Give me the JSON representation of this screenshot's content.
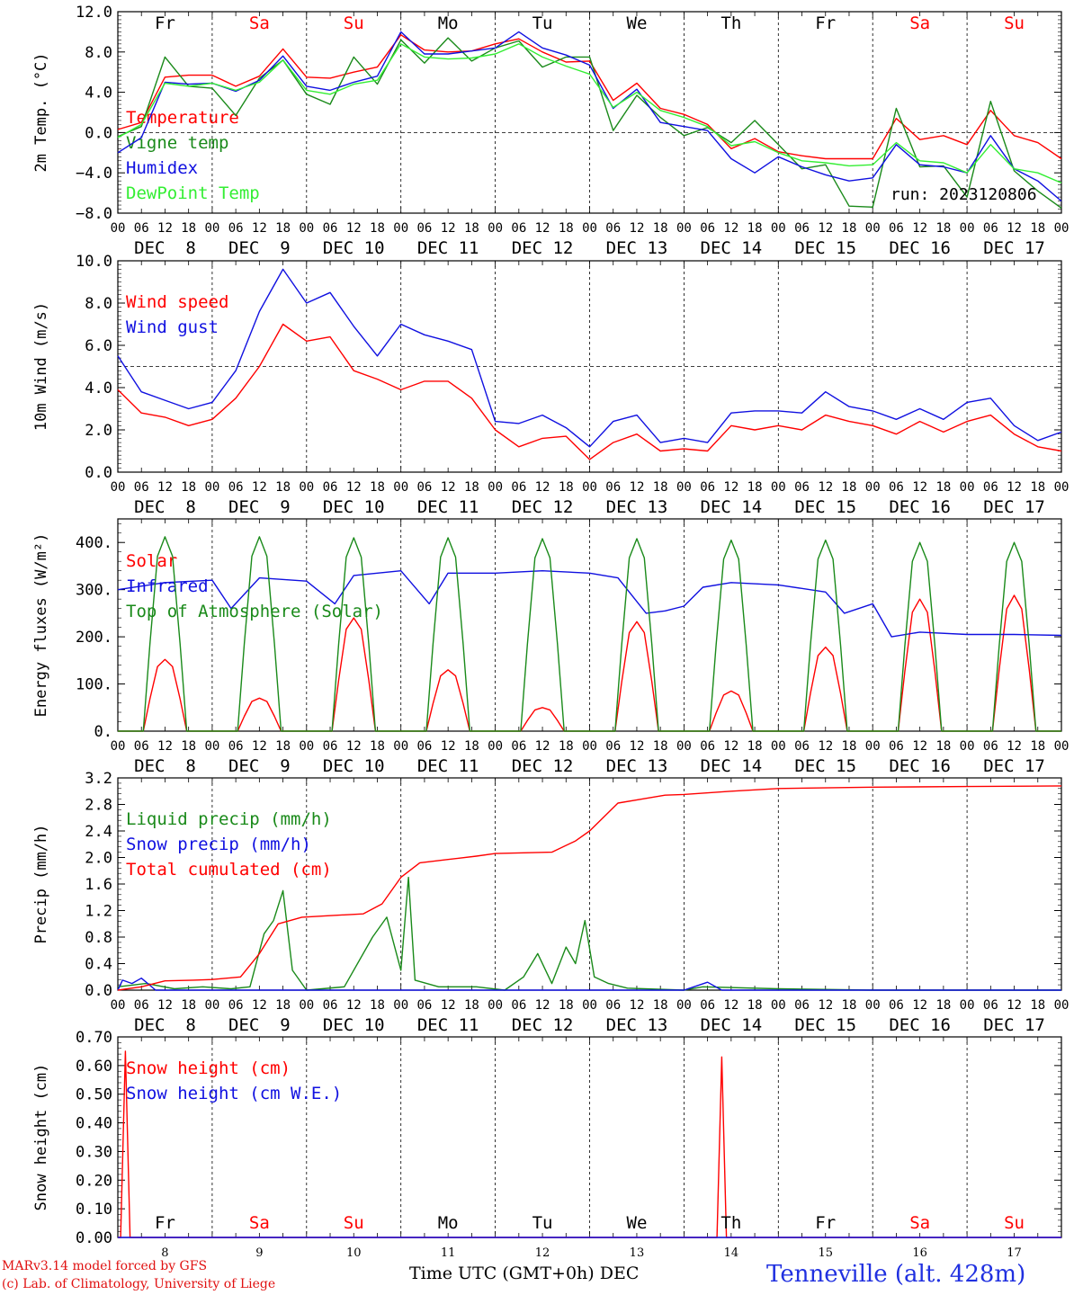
{
  "colors": {
    "red": "#ff0000",
    "green": "#1a8a1a",
    "blue": "#1010e0",
    "lightgreen": "#33ee33",
    "black": "#000000",
    "weekend": "#ff0000"
  },
  "days": {
    "weekday_labels": [
      "Fr",
      "Sa",
      "Su",
      "Mo",
      "Tu",
      "We",
      "Th",
      "Fr",
      "Sa",
      "Su"
    ],
    "weekend_flags": [
      false,
      true,
      true,
      false,
      false,
      false,
      false,
      false,
      true,
      true
    ],
    "date_labels": [
      "DEC  8",
      "DEC  9",
      "DEC 10",
      "DEC 11",
      "DEC 12",
      "DEC 13",
      "DEC 14",
      "DEC 15",
      "DEC 16",
      "DEC 17"
    ],
    "bottom_numbers": [
      "8",
      "9",
      "10",
      "11",
      "12",
      "13",
      "14",
      "15",
      "16",
      "17"
    ],
    "hour_ticks": [
      "00",
      "06",
      "12",
      "18"
    ],
    "final_hour": "00"
  },
  "run_label": "run: 2023120806",
  "footer": {
    "credit_line1": "MARv3.14 model forced by GFS",
    "credit_line2": "(c) Lab. of Climatology, University of Liege",
    "x_title": "Time UTC (GMT+0h) DEC",
    "station": "Tenneville (alt. 428m)"
  },
  "chart_data": [
    {
      "type": "line",
      "ylabel": "2m Temp. (°C)",
      "ylim": [
        -8,
        12
      ],
      "yticks": [
        "12.0",
        "8.0",
        "4.0",
        "0.0",
        "−4.0",
        "−8.0"
      ],
      "ytick_values": [
        12,
        8,
        4,
        0,
        -4,
        -8
      ],
      "minor_step": 0.4,
      "reference_line": 0,
      "x_unit": "days since DEC 8 00 UTC",
      "x_range": [
        0,
        10
      ],
      "series": [
        {
          "name": "Temperature",
          "color": "red",
          "x": [
            0,
            0.25,
            0.5,
            0.75,
            1,
            1.25,
            1.5,
            1.75,
            2,
            2.25,
            2.5,
            2.75,
            3,
            3.25,
            3.5,
            3.75,
            4,
            4.25,
            4.5,
            4.75,
            5,
            5.25,
            5.5,
            5.75,
            6,
            6.25,
            6.5,
            6.75,
            7,
            7.25,
            7.5,
            7.75,
            8,
            8.25,
            8.5,
            8.75,
            9,
            9.25,
            9.5,
            9.75,
            10
          ],
          "y": [
            0.3,
            1.0,
            5.5,
            5.7,
            5.7,
            4.6,
            5.6,
            8.3,
            5.5,
            5.4,
            6.0,
            6.5,
            9.7,
            8.2,
            8.0,
            8.1,
            8.8,
            9.3,
            8.0,
            7.0,
            7.1,
            3.2,
            4.9,
            2.4,
            1.8,
            0.8,
            -1.6,
            -0.6,
            -1.9,
            -2.3,
            -2.6,
            -2.6,
            -2.6,
            1.4,
            -0.7,
            -0.3,
            -1.2,
            2.2,
            -0.3,
            -1.0,
            -2.6
          ]
        },
        {
          "name": "Vigne temp",
          "color": "green",
          "x": [
            0,
            0.25,
            0.5,
            0.75,
            1,
            1.25,
            1.5,
            1.75,
            2,
            2.25,
            2.5,
            2.75,
            3,
            3.25,
            3.5,
            3.75,
            4,
            4.25,
            4.5,
            4.75,
            5,
            5.25,
            5.5,
            5.75,
            6,
            6.25,
            6.5,
            6.75,
            7,
            7.25,
            7.5,
            7.75,
            8,
            8.25,
            8.5,
            8.75,
            9,
            9.25,
            9.5,
            9.75,
            10
          ],
          "y": [
            -0.4,
            0.6,
            7.5,
            4.6,
            4.4,
            1.7,
            5.4,
            7.2,
            3.8,
            2.8,
            7.5,
            4.8,
            9.2,
            6.9,
            9.4,
            7.1,
            8.4,
            9.1,
            6.5,
            7.5,
            7.5,
            0.2,
            3.7,
            1.5,
            -0.3,
            0.5,
            -1.0,
            1.2,
            -1.2,
            -3.6,
            -3.2,
            -7.3,
            -7.4,
            2.4,
            -3.4,
            -3.3,
            -6.4,
            3.1,
            -3.8,
            -5.8,
            -7.5
          ]
        },
        {
          "name": "Humidex",
          "color": "blue",
          "x": [
            0,
            0.25,
            0.5,
            0.75,
            1,
            1.25,
            1.5,
            1.75,
            2,
            2.25,
            2.5,
            2.75,
            3,
            3.25,
            3.5,
            3.75,
            4,
            4.25,
            4.5,
            4.75,
            5,
            5.25,
            5.5,
            5.75,
            6,
            6.25,
            6.5,
            6.75,
            7,
            7.25,
            7.5,
            7.75,
            8,
            8.25,
            8.5,
            8.75,
            9,
            9.25,
            9.5,
            9.75,
            10
          ],
          "y": [
            -2.0,
            -0.5,
            5.0,
            4.8,
            4.9,
            4.1,
            5.2,
            7.6,
            4.6,
            4.2,
            5.0,
            5.6,
            10.0,
            7.8,
            7.8,
            8.1,
            8.4,
            10.0,
            8.4,
            7.7,
            6.7,
            2.4,
            4.3,
            1.0,
            0.6,
            0.2,
            -2.6,
            -4.0,
            -2.4,
            -3.4,
            -4.2,
            -4.8,
            -4.5,
            -1.2,
            -3.2,
            -3.4,
            -4.0,
            -0.3,
            -3.6,
            -4.8,
            -6.8
          ]
        },
        {
          "name": "DewPoint Temp",
          "color": "lightgreen",
          "x": [
            0,
            0.25,
            0.5,
            0.75,
            1,
            1.25,
            1.5,
            1.75,
            2,
            2.25,
            2.5,
            2.75,
            3,
            3.25,
            3.5,
            3.75,
            4,
            4.25,
            4.5,
            4.75,
            5,
            5.25,
            5.5,
            5.75,
            6,
            6.25,
            6.5,
            6.75,
            7,
            7.25,
            7.5,
            7.75,
            8,
            8.25,
            8.5,
            8.75,
            9,
            9.25,
            9.5,
            9.75,
            10
          ],
          "y": [
            -0.5,
            0.8,
            4.9,
            4.6,
            4.9,
            4.2,
            5.0,
            7.2,
            4.2,
            3.8,
            4.8,
            5.2,
            8.8,
            7.5,
            7.3,
            7.4,
            7.8,
            8.8,
            7.5,
            6.6,
            5.8,
            2.5,
            4.0,
            2.2,
            1.5,
            0.6,
            -1.3,
            -0.9,
            -2.0,
            -2.8,
            -3.0,
            -3.3,
            -3.2,
            -1.0,
            -2.8,
            -3.0,
            -4.0,
            -1.2,
            -3.6,
            -4.0,
            -5.0
          ]
        }
      ]
    },
    {
      "type": "line",
      "ylabel": "10m Wind (m/s)",
      "ylim": [
        0,
        10
      ],
      "yticks": [
        "10.0",
        "8.0",
        "6.0",
        "4.0",
        "2.0",
        "0.0"
      ],
      "ytick_values": [
        10,
        8,
        6,
        4,
        2,
        0
      ],
      "minor_step": 0.2,
      "reference_line": 5,
      "x_unit": "days since DEC 8 00 UTC",
      "x_range": [
        0,
        10
      ],
      "series": [
        {
          "name": "Wind speed",
          "color": "red",
          "x": [
            0,
            0.25,
            0.5,
            0.75,
            1,
            1.25,
            1.5,
            1.75,
            2,
            2.25,
            2.5,
            2.75,
            3,
            3.25,
            3.5,
            3.75,
            4,
            4.25,
            4.5,
            4.75,
            5,
            5.25,
            5.5,
            5.75,
            6,
            6.25,
            6.5,
            6.75,
            7,
            7.25,
            7.5,
            7.75,
            8,
            8.25,
            8.5,
            8.75,
            9,
            9.25,
            9.5,
            9.75,
            10
          ],
          "y": [
            3.9,
            2.8,
            2.6,
            2.2,
            2.5,
            3.5,
            5.0,
            7.0,
            6.2,
            6.4,
            4.8,
            4.4,
            3.9,
            4.3,
            4.3,
            3.5,
            2.0,
            1.2,
            1.6,
            1.7,
            0.6,
            1.4,
            1.8,
            1.0,
            1.1,
            1.0,
            2.2,
            2.0,
            2.2,
            2.0,
            2.7,
            2.4,
            2.2,
            1.8,
            2.4,
            1.9,
            2.4,
            2.7,
            1.8,
            1.2,
            1.0
          ]
        },
        {
          "name": "Wind gust",
          "color": "blue",
          "x": [
            0,
            0.25,
            0.5,
            0.75,
            1,
            1.25,
            1.5,
            1.75,
            2,
            2.25,
            2.5,
            2.75,
            3,
            3.25,
            3.5,
            3.75,
            4,
            4.25,
            4.5,
            4.75,
            5,
            5.25,
            5.5,
            5.75,
            6,
            6.25,
            6.5,
            6.75,
            7,
            7.25,
            7.5,
            7.75,
            8,
            8.25,
            8.5,
            8.75,
            9,
            9.25,
            9.5,
            9.75,
            10
          ],
          "y": [
            5.5,
            3.8,
            3.4,
            3.0,
            3.3,
            4.8,
            7.6,
            9.6,
            8.0,
            8.5,
            6.9,
            5.5,
            7.0,
            6.5,
            6.2,
            5.8,
            2.4,
            2.3,
            2.7,
            2.1,
            1.2,
            2.4,
            2.7,
            1.4,
            1.6,
            1.4,
            2.8,
            2.9,
            2.9,
            2.8,
            3.8,
            3.1,
            2.9,
            2.5,
            3.0,
            2.5,
            3.3,
            3.5,
            2.2,
            1.5,
            1.9
          ]
        }
      ]
    },
    {
      "type": "line",
      "ylabel": "Energy fluxes (W/m²)",
      "ylim": [
        0,
        450
      ],
      "yticks": [
        "400.",
        "300.",
        "200.",
        "100.",
        "0."
      ],
      "ytick_values": [
        400,
        300,
        200,
        100,
        0
      ],
      "minor_step": 20,
      "reference_line": null,
      "x_unit": "days since DEC 8 00 UTC",
      "x_range": [
        0,
        10
      ],
      "series": [
        {
          "name": "Solar",
          "color": "red",
          "peaks": [
            152,
            70,
            240,
            130,
            50,
            232,
            85,
            178,
            280,
            288
          ]
        },
        {
          "name": "Infrared",
          "color": "blue",
          "x": [
            0,
            0.5,
            1,
            1.2,
            1.5,
            2,
            2.3,
            2.5,
            3,
            3.3,
            3.5,
            4,
            4.5,
            5,
            5.3,
            5.6,
            5.8,
            6,
            6.2,
            6.5,
            7,
            7.5,
            7.7,
            8,
            8.2,
            8.5,
            9,
            9.5,
            10
          ],
          "y": [
            300,
            315,
            320,
            260,
            325,
            318,
            270,
            330,
            340,
            270,
            335,
            335,
            340,
            335,
            325,
            250,
            255,
            265,
            305,
            315,
            310,
            295,
            250,
            270,
            200,
            210,
            205,
            205,
            203
          ]
        },
        {
          "name": "Top of Atmosphere (Solar)",
          "color": "green",
          "peaks": [
            412,
            412,
            410,
            410,
            408,
            408,
            405,
            405,
            400,
            400
          ]
        }
      ]
    },
    {
      "type": "line",
      "ylabel": "Precip (mm/h)",
      "ylim": [
        0,
        3.2
      ],
      "yticks": [
        "3.2",
        "2.8",
        "2.4",
        "2.0",
        "1.6",
        "1.2",
        "0.8",
        "0.4",
        "0.0"
      ],
      "ytick_values": [
        3.2,
        2.8,
        2.4,
        2.0,
        1.6,
        1.2,
        0.8,
        0.4,
        0
      ],
      "minor_step": 0.08,
      "reference_line": null,
      "x_unit": "days since DEC 8 00 UTC",
      "x_range": [
        0,
        10
      ],
      "series": [
        {
          "name": "Liquid precip (mm/h)",
          "color": "green",
          "x": [
            0,
            0.3,
            0.6,
            0.9,
            1.2,
            1.4,
            1.55,
            1.65,
            1.75,
            1.85,
            2.0,
            2.4,
            2.7,
            2.85,
            3.0,
            3.08,
            3.15,
            3.4,
            3.8,
            4.1,
            4.3,
            4.45,
            4.6,
            4.75,
            4.85,
            4.95,
            5.05,
            5.2,
            5.4,
            6.0,
            6.2,
            7.0,
            8.0,
            9.0,
            10
          ],
          "y": [
            0.05,
            0.1,
            0.02,
            0.05,
            0.02,
            0.05,
            0.85,
            1.05,
            1.5,
            0.3,
            0.0,
            0.05,
            0.8,
            1.1,
            0.3,
            1.7,
            0.15,
            0.05,
            0.05,
            0.0,
            0.2,
            0.55,
            0.1,
            0.65,
            0.4,
            1.05,
            0.2,
            0.1,
            0.03,
            0.0,
            0.05,
            0.02,
            0.0,
            0.0,
            0.0
          ]
        },
        {
          "name": "Snow precip (mm/h)",
          "color": "blue",
          "x": [
            0,
            0.05,
            0.15,
            0.25,
            0.4,
            6.0,
            6.25,
            6.4,
            10
          ],
          "y": [
            0,
            0.15,
            0.1,
            0.18,
            0,
            0,
            0.12,
            0,
            0
          ]
        },
        {
          "name": "Total cumulated (cm)",
          "color": "red",
          "x": [
            0,
            0.25,
            0.5,
            0.8,
            1.0,
            1.3,
            1.5,
            1.7,
            1.95,
            2.2,
            2.6,
            2.8,
            3.0,
            3.2,
            3.5,
            3.8,
            4.0,
            4.3,
            4.6,
            4.85,
            5.0,
            5.3,
            5.8,
            6.0,
            6.5,
            7.0,
            8.0,
            9.0,
            10
          ],
          "y": [
            0,
            0.05,
            0.14,
            0.15,
            0.16,
            0.2,
            0.55,
            1.0,
            1.1,
            1.12,
            1.15,
            1.3,
            1.7,
            1.92,
            1.97,
            2.02,
            2.06,
            2.07,
            2.08,
            2.25,
            2.4,
            2.82,
            2.94,
            2.95,
            3.0,
            3.04,
            3.06,
            3.07,
            3.08
          ]
        }
      ]
    },
    {
      "type": "line",
      "ylabel": "Snow height (cm)",
      "ylim": [
        0,
        0.7
      ],
      "yticks": [
        "0.70",
        "0.60",
        "0.50",
        "0.40",
        "0.30",
        "0.20",
        "0.10",
        "0.00"
      ],
      "ytick_values": [
        0.7,
        0.6,
        0.5,
        0.4,
        0.3,
        0.2,
        0.1,
        0
      ],
      "minor_step": 0.02,
      "reference_line": null,
      "x_unit": "days since DEC 8 00 UTC",
      "x_range": [
        0,
        10
      ],
      "series": [
        {
          "name": "Snow height (cm)",
          "color": "red",
          "x": [
            0,
            0.03,
            0.08,
            0.13,
            6.35,
            6.4,
            6.45,
            10
          ],
          "y": [
            0,
            0,
            0.65,
            0,
            0,
            0.63,
            0,
            0
          ]
        },
        {
          "name": "Snow height (cm W.E.)",
          "color": "blue",
          "x": [
            0,
            10
          ],
          "y": [
            0,
            0
          ]
        }
      ]
    }
  ]
}
